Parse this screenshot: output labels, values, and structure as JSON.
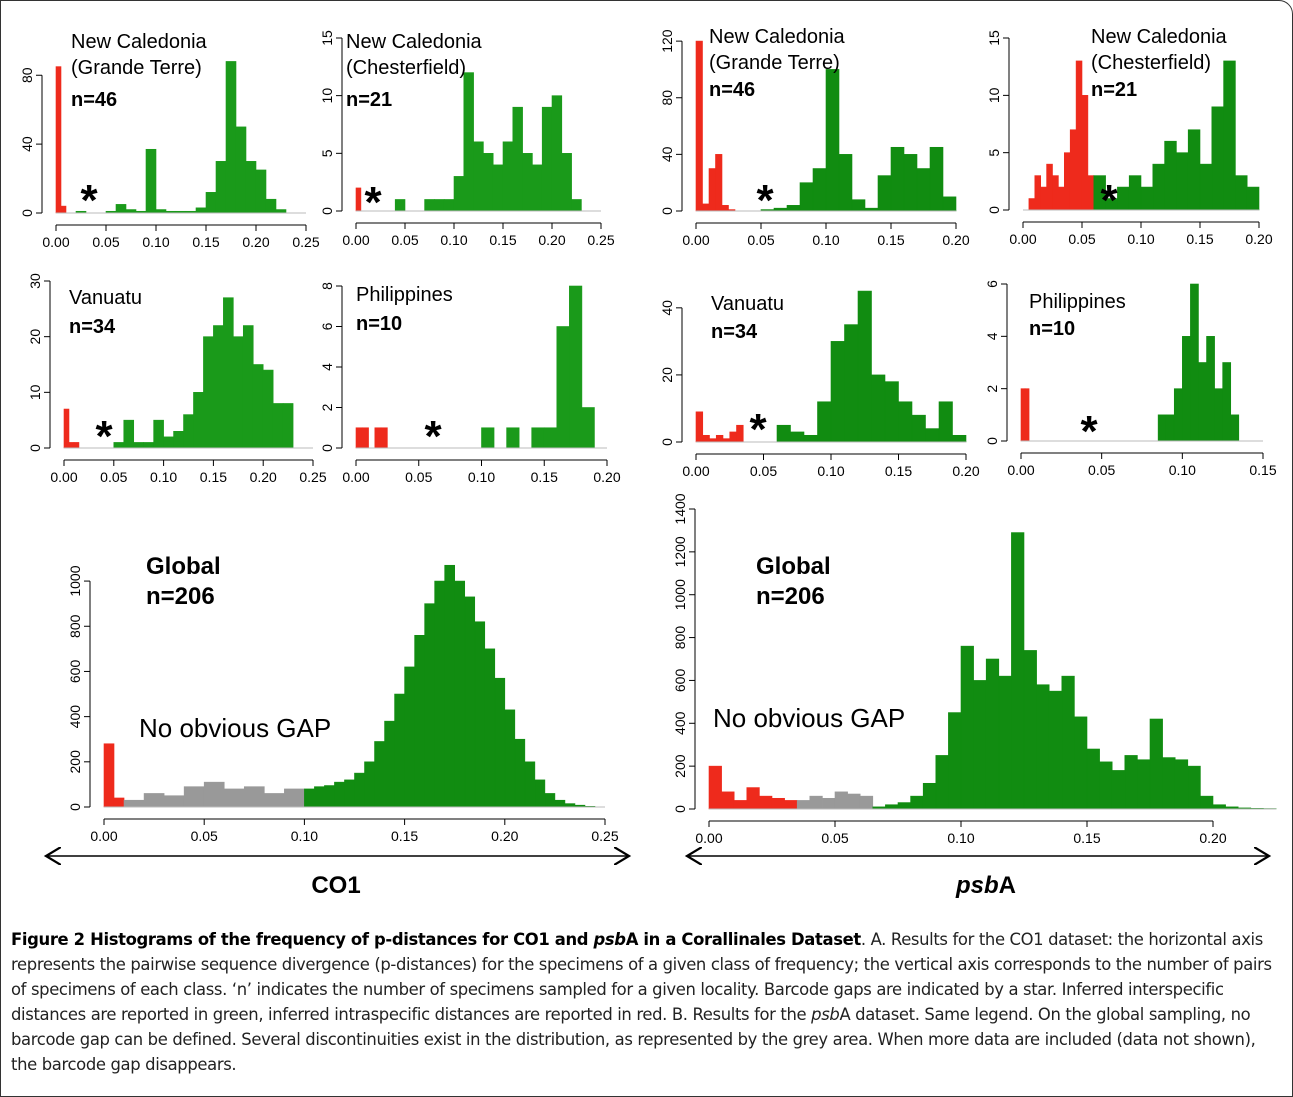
{
  "chart_data": [
    {
      "type": "histogram",
      "title": [
        "New Caledonia",
        "(Grande Terre)"
      ],
      "subtitle": "n=46",
      "annotation": "*",
      "series": [
        {
          "color": "#ee2a1c",
          "bins": [
            0,
            0.005,
            0.01
          ],
          "values": [
            85,
            4
          ]
        },
        {
          "color": "#1a9a1a",
          "bins": [
            0.02,
            0.03,
            0.04,
            0.05,
            0.06,
            0.07,
            0.08,
            0.09,
            0.1,
            0.11,
            0.12,
            0.13,
            0.14,
            0.15,
            0.16,
            0.17,
            0.18,
            0.19,
            0.2,
            0.21,
            0.22,
            0.23
          ],
          "values": [
            1,
            0,
            0,
            1,
            5,
            2,
            1,
            37,
            2,
            1,
            1,
            1,
            3,
            12,
            30,
            88,
            50,
            30,
            25,
            8,
            2
          ]
        }
      ],
      "xlim": [
        0,
        0.25
      ],
      "ylim": [
        0,
        90
      ],
      "xticks": [
        {
          "value": 0,
          "label": "0.00"
        },
        0.05,
        {
          "value": 0.1,
          "label": "0.10"
        },
        0.15,
        {
          "value": 0.2,
          "label": "0.20"
        },
        0.25
      ],
      "yticks": [
        0,
        40,
        80
      ]
    },
    {
      "type": "histogram",
      "title": [
        "New Caledonia",
        "(Chesterfield)"
      ],
      "subtitle": "n=21",
      "annotation": "*",
      "series": [
        {
          "color": "#ee2a1c",
          "bins": [
            0,
            0.005
          ],
          "values": [
            2
          ]
        },
        {
          "color": "#1a9a1a",
          "bins": [
            0.03,
            0.04,
            0.05,
            0.06,
            0.07,
            0.08,
            0.09,
            0.1,
            0.11,
            0.12,
            0.13,
            0.14,
            0.15,
            0.16,
            0.17,
            0.18,
            0.19,
            0.2,
            0.21,
            0.22,
            0.23
          ],
          "values": [
            0,
            1,
            0,
            0,
            1,
            1,
            1,
            3,
            12,
            6,
            5,
            4,
            6,
            9,
            5,
            4,
            9,
            10,
            5,
            1
          ]
        }
      ],
      "xlim": [
        0,
        0.25
      ],
      "ylim": [
        0,
        15
      ],
      "xticks": [
        {
          "value": 0,
          "label": "0.00"
        },
        0.05,
        {
          "value": 0.1,
          "label": "0.10"
        },
        0.15,
        {
          "value": 0.2,
          "label": "0.20"
        },
        0.25
      ],
      "yticks": [
        0,
        5,
        10,
        15
      ]
    },
    {
      "type": "histogram",
      "title": [
        "New Caledonia",
        "(Grande Terre)"
      ],
      "subtitle": "n=46",
      "annotation": "*",
      "series": [
        {
          "color": "#ee2a1c",
          "bins": [
            0,
            0.005,
            0.01,
            0.015,
            0.02,
            0.025,
            0.03
          ],
          "values": [
            120,
            5,
            30,
            40,
            4,
            1
          ]
        },
        {
          "color": "#118c11",
          "bins": [
            0.05,
            0.06,
            0.07,
            0.08,
            0.09,
            0.1,
            0.11,
            0.12,
            0.13,
            0.14,
            0.15,
            0.16,
            0.17,
            0.18,
            0.19,
            0.2
          ],
          "values": [
            1,
            2,
            4,
            20,
            30,
            100,
            40,
            8,
            2,
            25,
            45,
            40,
            30,
            45,
            10
          ]
        }
      ],
      "xlim": [
        0,
        0.2
      ],
      "ylim": [
        0,
        125
      ],
      "xticks": [
        {
          "value": 0,
          "label": "0.00"
        },
        0.05,
        {
          "value": 0.1,
          "label": "0.10"
        },
        0.15,
        {
          "value": 0.2,
          "label": "0.20"
        }
      ],
      "yticks": [
        0,
        40,
        80,
        120
      ]
    },
    {
      "type": "histogram",
      "title": [
        "New Caledonia",
        "(Chesterfield)"
      ],
      "subtitle": "n=21",
      "annotation": "*",
      "series": [
        {
          "color": "#ee2a1c",
          "bins": [
            0,
            0.005,
            0.01,
            0.015,
            0.02,
            0.025,
            0.03,
            0.035,
            0.04,
            0.045,
            0.05,
            0.055,
            0.06
          ],
          "values": [
            0,
            1,
            3,
            2,
            4,
            3,
            2,
            5,
            7,
            13,
            10,
            3
          ]
        },
        {
          "color": "#118c11",
          "bins": [
            0.06,
            0.07,
            0.08,
            0.09,
            0.1,
            0.11,
            0.12,
            0.13,
            0.14,
            0.15,
            0.16,
            0.17,
            0.18,
            0.19,
            0.2
          ],
          "values": [
            3,
            1,
            2,
            3,
            2,
            4,
            6,
            5,
            7,
            4,
            9,
            13,
            3,
            2
          ]
        }
      ],
      "xlim": [
        0,
        0.2
      ],
      "ylim": [
        0,
        15
      ],
      "xticks": [
        {
          "value": 0,
          "label": "0.00"
        },
        0.05,
        {
          "value": 0.1,
          "label": "0.10"
        },
        0.15,
        {
          "value": 0.2,
          "label": "0.20"
        }
      ],
      "yticks": [
        0,
        5,
        10,
        15
      ]
    },
    {
      "type": "histogram",
      "title": [
        "Vanuatu"
      ],
      "subtitle": "n=34",
      "annotation": "*",
      "series": [
        {
          "color": "#ee2a1c",
          "bins": [
            0,
            0.005,
            0.01,
            0.015
          ],
          "values": [
            7,
            1,
            1
          ]
        },
        {
          "color": "#1a9a1a",
          "bins": [
            0.04,
            0.05,
            0.06,
            0.07,
            0.08,
            0.09,
            0.1,
            0.11,
            0.12,
            0.13,
            0.14,
            0.15,
            0.16,
            0.17,
            0.18,
            0.19,
            0.2,
            0.21,
            0.22,
            0.23
          ],
          "values": [
            0,
            1,
            5,
            1,
            1,
            5,
            2,
            3,
            6,
            10,
            20,
            22,
            27,
            20,
            22,
            15,
            14,
            8,
            8
          ]
        }
      ],
      "xlim": [
        0,
        0.25
      ],
      "ylim": [
        0,
        30
      ],
      "xticks": [
        {
          "value": 0,
          "label": "0.00"
        },
        0.05,
        {
          "value": 0.1,
          "label": "0.10"
        },
        0.15,
        {
          "value": 0.2,
          "label": "0.20"
        },
        0.25
      ],
      "yticks": [
        0,
        10,
        20,
        30
      ]
    },
    {
      "type": "histogram",
      "title": [
        "Philippines"
      ],
      "subtitle": "n=10",
      "annotation": "*",
      "series": [
        {
          "color": "#ee2a1c",
          "bins": [
            0,
            0.005,
            0.01,
            0.015,
            0.02,
            0.025
          ],
          "values": [
            1,
            1,
            0,
            1,
            1
          ]
        },
        {
          "color": "#1a9a1a",
          "bins": [
            0.1,
            0.11,
            0.12,
            0.13,
            0.14,
            0.15,
            0.16,
            0.17,
            0.18,
            0.19
          ],
          "values": [
            1,
            0,
            1,
            0,
            1,
            1,
            6,
            8,
            2
          ]
        }
      ],
      "xlim": [
        0,
        0.2
      ],
      "ylim": [
        0,
        8
      ],
      "xticks": [
        {
          "value": 0,
          "label": "0.00"
        },
        0.05,
        {
          "value": 0.1,
          "label": "0.10"
        },
        0.15,
        {
          "value": 0.2,
          "label": "0.20"
        }
      ],
      "yticks": [
        0,
        2,
        4,
        6,
        8
      ]
    },
    {
      "type": "histogram",
      "title": [
        "Vanuatu"
      ],
      "subtitle": "n=34",
      "annotation": "*",
      "series": [
        {
          "color": "#ee2a1c",
          "bins": [
            0,
            0.005,
            0.01,
            0.015,
            0.02,
            0.025,
            0.03,
            0.035
          ],
          "values": [
            9,
            2,
            1,
            2,
            1,
            3,
            5
          ]
        },
        {
          "color": "#118c11",
          "bins": [
            0.06,
            0.07,
            0.08,
            0.09,
            0.1,
            0.11,
            0.12,
            0.13,
            0.14,
            0.15,
            0.16,
            0.17,
            0.18,
            0.19,
            0.2
          ],
          "values": [
            5,
            3,
            2,
            12,
            30,
            35,
            45,
            20,
            18,
            12,
            8,
            4,
            12,
            2
          ]
        }
      ],
      "xlim": [
        0,
        0.2
      ],
      "ylim": [
        0,
        48
      ],
      "xticks": [
        {
          "value": 0,
          "label": "0.00"
        },
        0.05,
        {
          "value": 0.1,
          "label": "0.10"
        },
        0.15,
        {
          "value": 0.2,
          "label": "0.20"
        }
      ],
      "yticks": [
        0,
        20,
        40
      ]
    },
    {
      "type": "histogram",
      "title": [
        "Philippines"
      ],
      "subtitle": "n=10",
      "annotation": "*",
      "series": [
        {
          "color": "#ee2a1c",
          "bins": [
            0,
            0.0025,
            0.005
          ],
          "values": [
            2,
            2
          ]
        },
        {
          "color": "#118c11",
          "bins": [
            0.085,
            0.09,
            0.095,
            0.1,
            0.105,
            0.11,
            0.115,
            0.12,
            0.125,
            0.13,
            0.135
          ],
          "values": [
            1,
            1,
            2,
            4,
            6,
            3,
            4,
            2,
            3,
            1
          ]
        }
      ],
      "xlim": [
        0,
        0.15
      ],
      "ylim": [
        0,
        6
      ],
      "xticks": [
        {
          "value": 0,
          "label": "0.00"
        },
        0.05,
        {
          "value": 0.1,
          "label": "0.10"
        },
        0.15
      ],
      "yticks": [
        0,
        2,
        4,
        6
      ]
    },
    {
      "type": "histogram",
      "title": [
        "Global"
      ],
      "subtitle": "n=206",
      "annotation": "No obvious GAP",
      "series": [
        {
          "color": "#ee2a1c",
          "bins": [
            0,
            0.005,
            0.01
          ],
          "values": [
            280,
            40
          ]
        },
        {
          "color": "#999999",
          "bins": [
            0.01,
            0.02,
            0.03,
            0.04,
            0.05,
            0.06,
            0.07,
            0.08,
            0.09,
            0.1
          ],
          "values": [
            30,
            60,
            50,
            90,
            110,
            80,
            90,
            60,
            80
          ]
        },
        {
          "color": "#118c11",
          "bins": [
            0.1,
            0.105,
            0.11,
            0.115,
            0.12,
            0.125,
            0.13,
            0.135,
            0.14,
            0.145,
            0.15,
            0.155,
            0.16,
            0.165,
            0.17,
            0.175,
            0.18,
            0.185,
            0.19,
            0.195,
            0.2,
            0.205,
            0.21,
            0.215,
            0.22,
            0.225,
            0.23,
            0.235,
            0.24,
            0.245
          ],
          "values": [
            80,
            90,
            95,
            110,
            120,
            150,
            200,
            290,
            380,
            500,
            620,
            760,
            900,
            1000,
            1070,
            1000,
            930,
            820,
            700,
            570,
            430,
            300,
            200,
            120,
            60,
            30,
            15,
            8,
            3
          ]
        }
      ],
      "xlim": [
        0,
        0.25
      ],
      "ylim": [
        0,
        1080
      ],
      "xticks": [
        {
          "value": 0,
          "label": "0.00"
        },
        0.05,
        {
          "value": 0.1,
          "label": "0.10"
        },
        0.15,
        {
          "value": 0.2,
          "label": "0.20"
        },
        0.25
      ],
      "yticks": [
        0,
        200,
        400,
        600,
        800,
        1000
      ]
    },
    {
      "type": "histogram",
      "title": [
        "Global"
      ],
      "subtitle": "n=206",
      "annotation": "No obvious GAP",
      "series": [
        {
          "color": "#ee2a1c",
          "bins": [
            0,
            0.005,
            0.01,
            0.015,
            0.02,
            0.025,
            0.03,
            0.035
          ],
          "values": [
            200,
            80,
            40,
            100,
            60,
            50,
            40
          ]
        },
        {
          "color": "#999999",
          "bins": [
            0.035,
            0.04,
            0.045,
            0.05,
            0.055,
            0.06,
            0.065
          ],
          "values": [
            40,
            60,
            50,
            80,
            70,
            60
          ]
        },
        {
          "color": "#118c11",
          "bins": [
            0.065,
            0.07,
            0.075,
            0.08,
            0.085,
            0.09,
            0.095,
            0.1,
            0.105,
            0.11,
            0.115,
            0.12,
            0.125,
            0.13,
            0.135,
            0.14,
            0.145,
            0.15,
            0.155,
            0.16,
            0.165,
            0.17,
            0.175,
            0.18,
            0.185,
            0.19,
            0.195,
            0.2,
            0.205,
            0.21,
            0.215,
            0.22,
            0.225
          ],
          "values": [
            10,
            20,
            30,
            60,
            120,
            250,
            450,
            760,
            600,
            700,
            620,
            1290,
            740,
            580,
            550,
            620,
            430,
            280,
            220,
            180,
            250,
            230,
            420,
            240,
            230,
            200,
            60,
            20,
            10,
            5,
            3,
            2
          ]
        }
      ],
      "xlim": [
        0,
        0.225
      ],
      "ylim": [
        0,
        1400
      ],
      "xticks": [
        {
          "value": 0,
          "label": "0.00"
        },
        0.05,
        {
          "value": 0.1,
          "label": "0.10"
        },
        0.15,
        {
          "value": 0.2,
          "label": "0.20"
        }
      ],
      "yticks": [
        0,
        200,
        400,
        600,
        800,
        1000,
        1200,
        1400
      ]
    }
  ],
  "labels": {
    "left": "CO1",
    "right": [
      "psb",
      "A"
    ]
  },
  "caption": {
    "title": [
      "Figure 2 Histograms of the frequency of p-distances for CO1 and ",
      "psb",
      "A in a Corallinales Dataset"
    ],
    "body": [
      ". A. Results for the CO1 dataset: the horizontal axis represents the pairwise sequence divergence (p-distances) for the specimens of a given class of frequency; the vertical axis corresponds to the number of pairs of specimens of each class. ‘n’ indicates the number of specimens sampled for a given locality. Barcode gaps are indicated by a star. Inferred interspecific distances are reported in green, inferred intraspecific distances are reported in red. B. Results for the ",
      "psb",
      "A dataset. Same legend. On the global sampling, no barcode gap can be defined. Several discontinuities exist in the distribution, as represented by the grey area. When more data are included (data not shown), the barcode gap disappears."
    ]
  }
}
